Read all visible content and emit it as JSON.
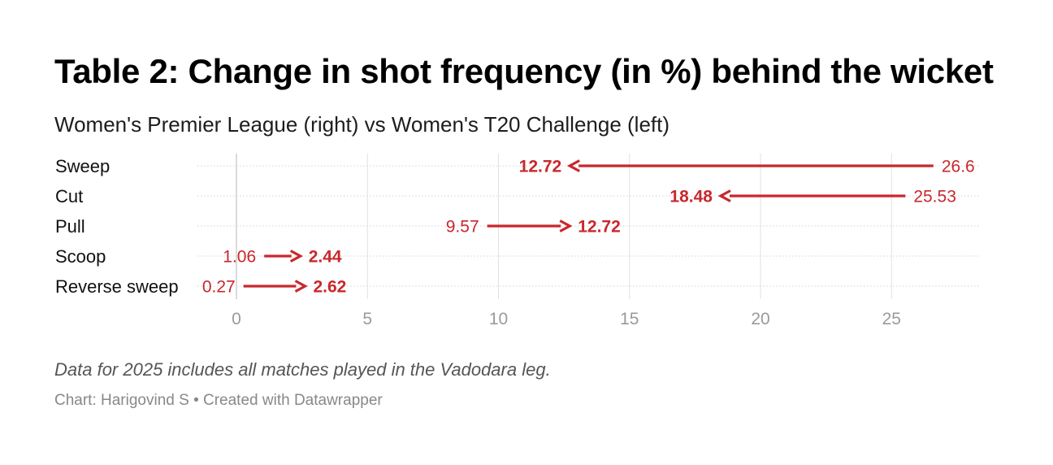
{
  "header": {
    "title": "Table 2: Change in shot frequency (in %) behind the wicket",
    "subtitle": "Women's Premier League (right) vs Women's T20 Challenge (left)"
  },
  "footer": {
    "notes": "Data for 2025 includes all matches played in the Vadodara leg.",
    "source": "Chart: Harigovind S • Created with Datawrapper"
  },
  "colors": {
    "arrow": "#c8282d",
    "grid": "#d8d8d8",
    "row_line": "#d4d4d4"
  },
  "chart_data": {
    "type": "arrow",
    "title": "Table 2: Change in shot frequency (in %) behind the wicket",
    "subtitle": "Women's Premier League (right) vs Women's T20 Challenge (left)",
    "series_labels": {
      "from": "Women's T20 Challenge",
      "to": "Women's Premier League"
    },
    "categories": [
      "Sweep",
      "Cut",
      "Pull",
      "Scoop",
      "Reverse sweep"
    ],
    "rows": [
      {
        "label": "Sweep",
        "from": 26.6,
        "to": 12.72,
        "from_label": "26.6",
        "to_label": "12.72"
      },
      {
        "label": "Cut",
        "from": 25.53,
        "to": 18.48,
        "from_label": "25.53",
        "to_label": "18.48"
      },
      {
        "label": "Pull",
        "from": 9.57,
        "to": 12.72,
        "from_label": "9.57",
        "to_label": "12.72"
      },
      {
        "label": "Scoop",
        "from": 1.06,
        "to": 2.44,
        "from_label": "1.06",
        "to_label": "2.44"
      },
      {
        "label": "Reverse sweep",
        "from": 0.27,
        "to": 2.62,
        "from_label": "0.27",
        "to_label": "2.62"
      }
    ],
    "x_ticks": [
      0,
      5,
      10,
      15,
      20,
      25
    ],
    "xlim": [
      0,
      28.5
    ],
    "xlabel": "",
    "ylabel": "",
    "grid": true
  }
}
